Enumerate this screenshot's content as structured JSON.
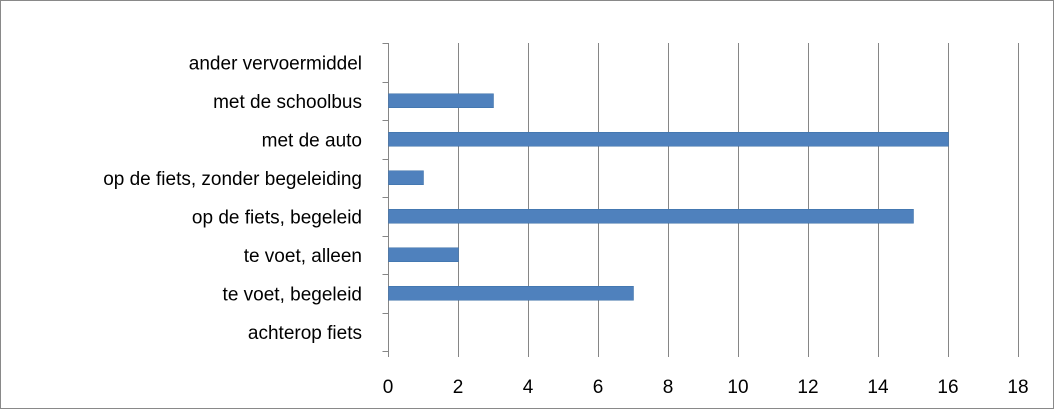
{
  "chart_data": {
    "type": "bar",
    "orientation": "horizontal",
    "title": "",
    "xlabel": "",
    "ylabel": "",
    "categories": [
      "achterop fiets",
      "te voet, begeleid",
      "te voet, alleen",
      "op de fiets, begeleid",
      "op de fiets, zonder begeleiding",
      "met de auto",
      "met de schoolbus",
      "ander vervoermiddel"
    ],
    "values": [
      0,
      7,
      2,
      15,
      1,
      16,
      3,
      0
    ],
    "xlim": [
      0,
      18
    ],
    "xticks": [
      "0",
      "2",
      "4",
      "6",
      "8",
      "10",
      "12",
      "14",
      "16",
      "18"
    ],
    "grid": "vertical",
    "legend": "none",
    "colors": {
      "bar": "#4f81bd",
      "bar_edge": "#3a6ea5",
      "grid": "#868686",
      "axis": "#868686"
    }
  }
}
